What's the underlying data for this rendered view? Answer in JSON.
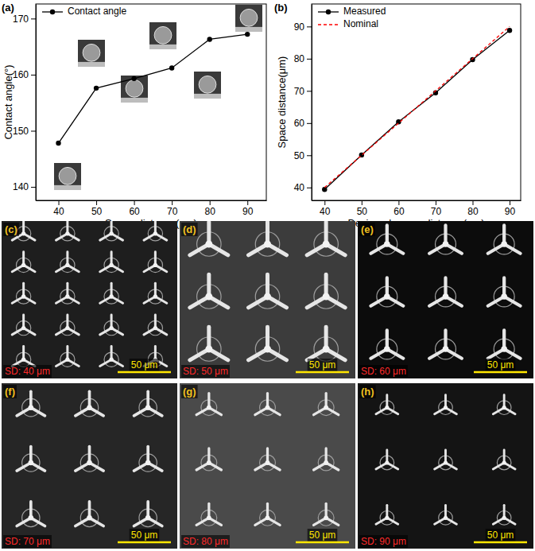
{
  "chart_data": [
    {
      "type": "line",
      "title": "(a)",
      "x_label": "Space distance(μm)",
      "y_label": "Contact angle(°)",
      "x": [
        40,
        50,
        60,
        70,
        80,
        90
      ],
      "series": [
        {
          "name": "Contact angle",
          "color": "#000000",
          "marker": "circle",
          "line_style": "solid",
          "values": [
            147.8,
            157.6,
            159.3,
            161.2,
            166.3,
            167.2
          ]
        }
      ],
      "xlim": [
        34,
        95
      ],
      "ylim": [
        137.6,
        172.6
      ],
      "xticks": [
        40,
        50,
        60,
        70,
        80,
        90
      ],
      "yticks": [
        140,
        150,
        160,
        170
      ],
      "legend": "upper left"
    },
    {
      "type": "line",
      "title": "(b)",
      "x_label": "Designed space distance(μm)",
      "y_label": "Space distance(μm)",
      "x": [
        40,
        50,
        60,
        70,
        80,
        90
      ],
      "series": [
        {
          "name": "Measured",
          "color": "#000000",
          "marker": "circle",
          "line_style": "solid",
          "values": [
            39.4,
            50.1,
            60.4,
            69.4,
            79.7,
            88.8
          ]
        },
        {
          "name": "Nominal",
          "color": "#ff0000",
          "marker": "none",
          "line_style": "dashed",
          "values": [
            40,
            50,
            60,
            70,
            80,
            90
          ]
        }
      ],
      "xlim": [
        36.5,
        93
      ],
      "ylim": [
        36,
        97
      ],
      "xticks": [
        40,
        50,
        60,
        70,
        80,
        90
      ],
      "yticks": [
        40,
        50,
        60,
        70,
        80,
        90
      ],
      "legend": "upper left"
    }
  ],
  "panels": [
    {
      "label": "(c)",
      "sd": "SD: 40 μm",
      "scale_bar": "50 μm"
    },
    {
      "label": "(d)",
      "sd": "SD: 50 μm",
      "scale_bar": "50 μm"
    },
    {
      "label": "(e)",
      "sd": "SD: 60 μm",
      "scale_bar": "50 μm"
    },
    {
      "label": "(f)",
      "sd": "SD: 70 μm",
      "scale_bar": "50 μm"
    },
    {
      "label": "(g)",
      "sd": "SD: 80 μm",
      "scale_bar": "50 μm"
    },
    {
      "label": "(h)",
      "sd": "SD: 90 μm",
      "scale_bar": "50 μm"
    }
  ]
}
